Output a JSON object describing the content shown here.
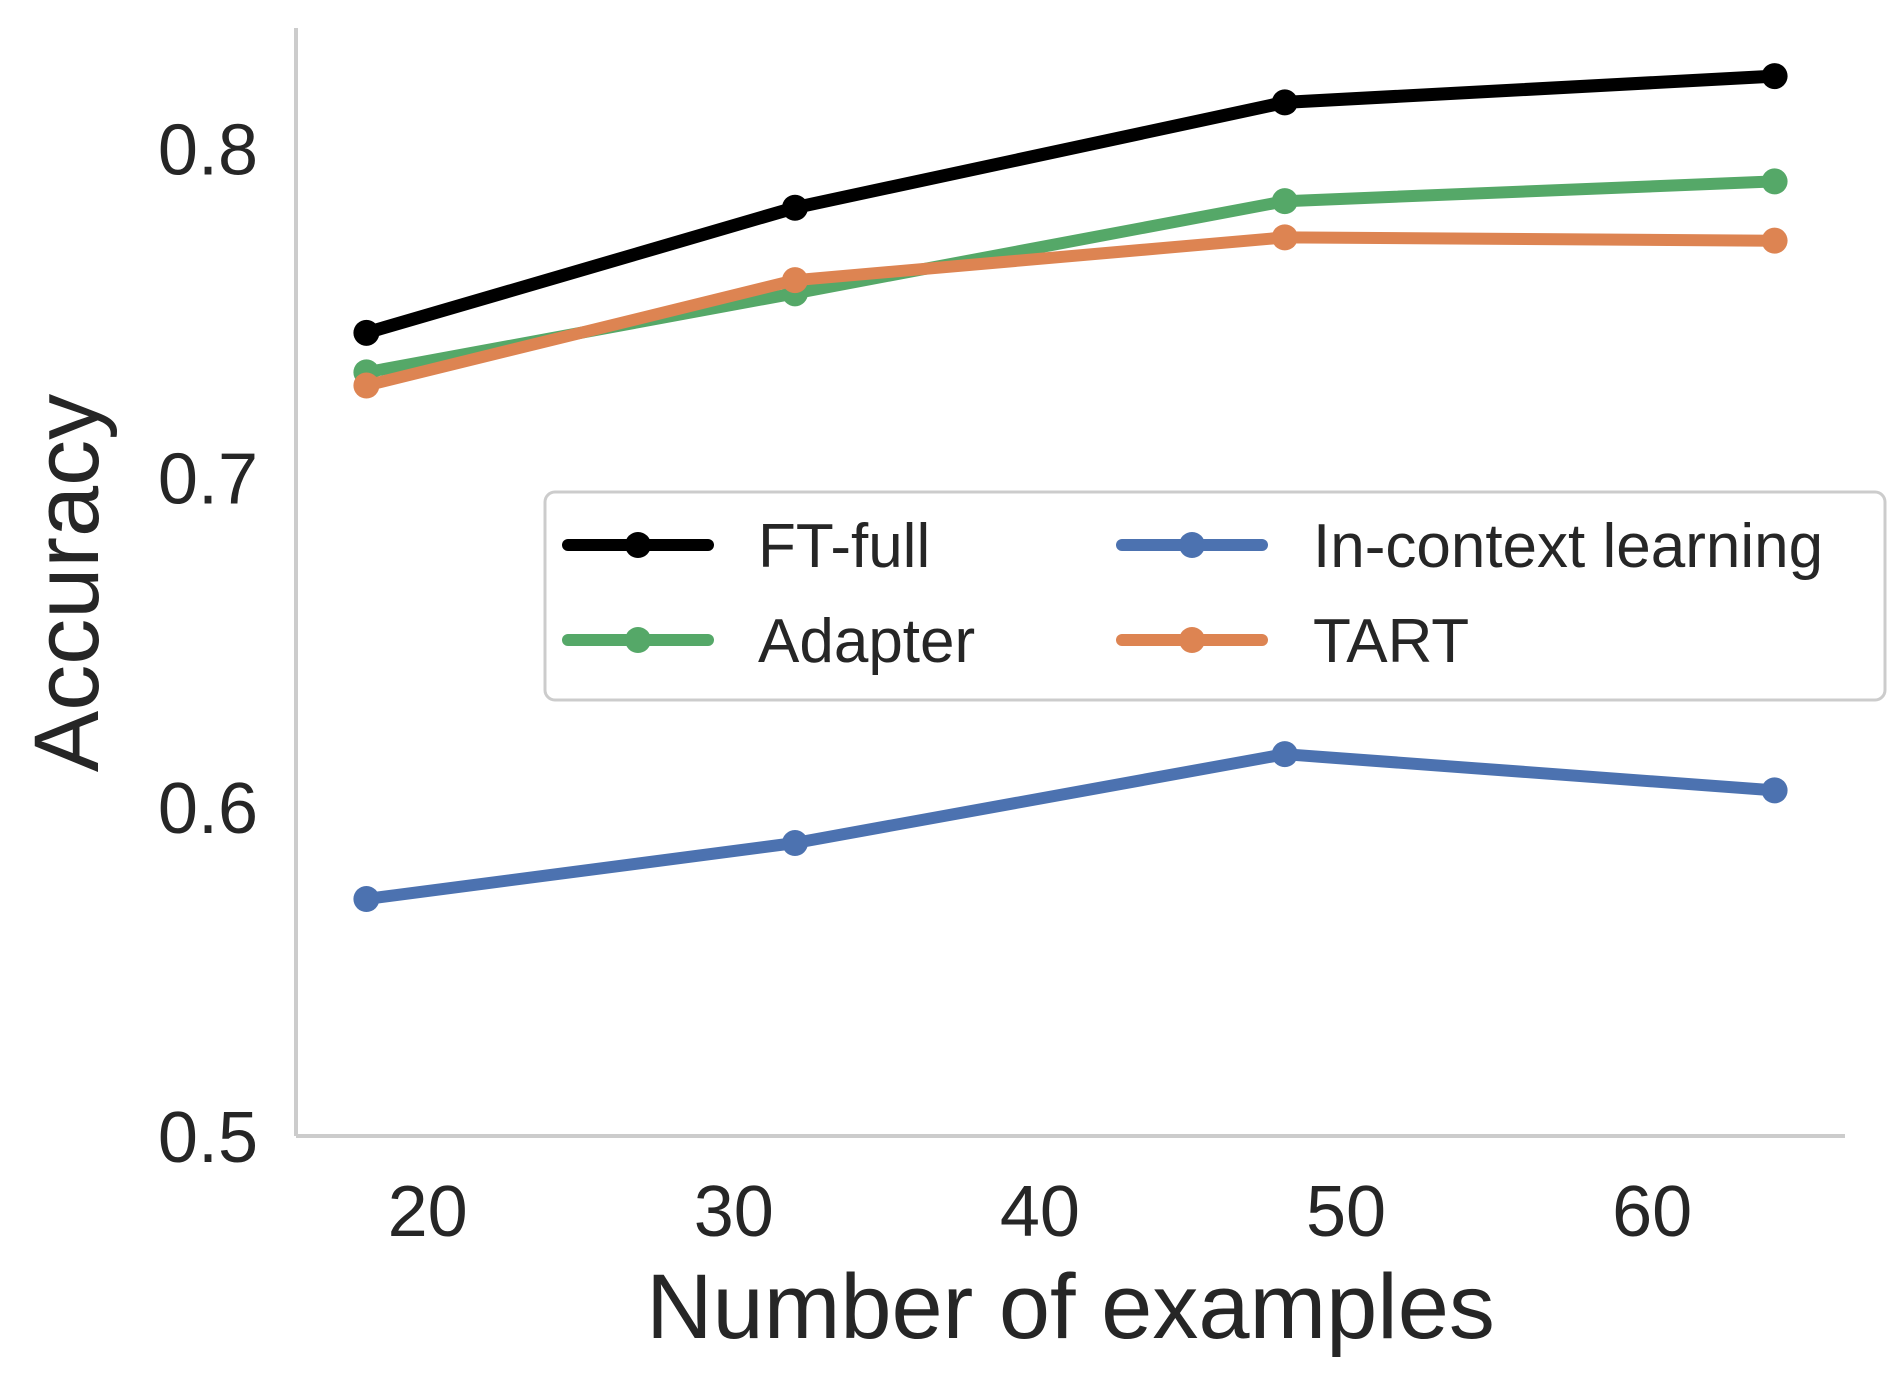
{
  "chart_data": {
    "type": "line",
    "title": "",
    "xlabel": "Number of examples",
    "ylabel": "Accuracy",
    "x": [
      18,
      32,
      48,
      64
    ],
    "xticks": [
      20,
      30,
      40,
      50,
      60
    ],
    "xtick_labels": [
      "20",
      "30",
      "40",
      "50",
      "60"
    ],
    "xlim": [
      15.7,
      66.3
    ],
    "yticks": [
      0.5,
      0.6,
      0.7,
      0.8
    ],
    "ytick_labels": [
      "0.5",
      "0.6",
      "0.7",
      "0.8"
    ],
    "ylim": [
      0.5,
      0.836
    ],
    "grid": false,
    "legend_position": "center-right",
    "legend_columns": 2,
    "series": [
      {
        "name": "FT-full",
        "color": "#000000",
        "values": [
          0.744,
          0.782,
          0.814,
          0.822
        ]
      },
      {
        "name": "Adapter",
        "color": "#55a868",
        "values": [
          0.732,
          0.756,
          0.784,
          0.79
        ]
      },
      {
        "name": "TART",
        "color": "#dd8452",
        "values": [
          0.728,
          0.76,
          0.773,
          0.772
        ]
      },
      {
        "name": "In-context learning",
        "color": "#4c72b0",
        "values": [
          0.572,
          0.589,
          0.616,
          0.605
        ]
      }
    ],
    "legend_order": [
      "FT-full",
      "Adapter",
      "In-context learning",
      "TART"
    ]
  }
}
